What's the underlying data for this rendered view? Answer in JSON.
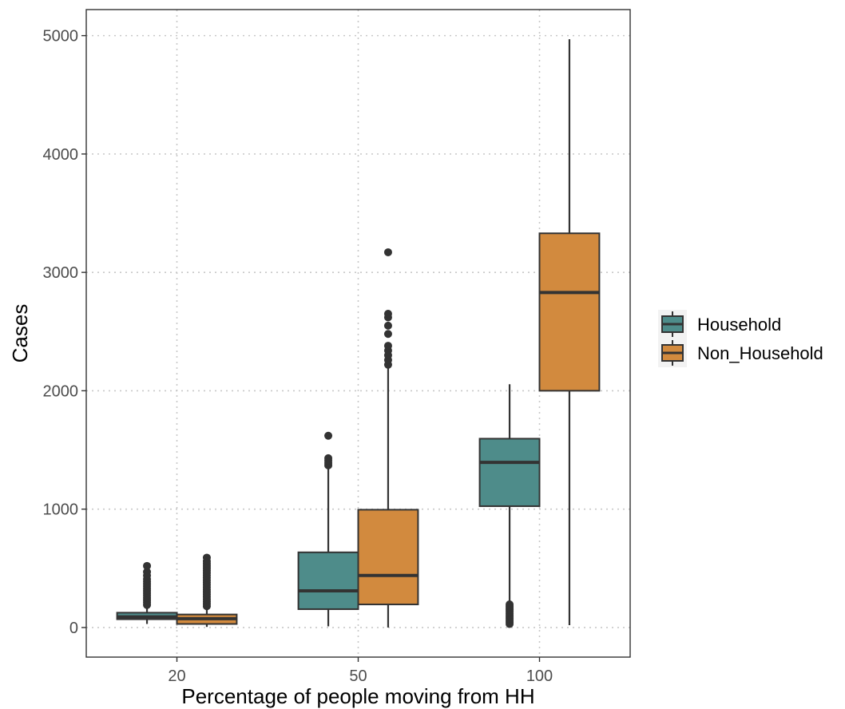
{
  "chart_data": {
    "type": "box",
    "title": "",
    "xlabel": "Percentage of people moving from HH",
    "ylabel": "Cases",
    "categories": [
      "20",
      "50",
      "100"
    ],
    "ylim": [
      -250,
      5220
    ],
    "yticks": [
      0,
      1000,
      2000,
      3000,
      4000,
      5000
    ],
    "grid": "dotted-major",
    "legend_position": "right",
    "series": [
      {
        "name": "Household",
        "color": "#4e8c8a",
        "boxes": [
          {
            "category": "20",
            "q1": 70,
            "median": 90,
            "q3": 125,
            "whisker_low": 30,
            "whisker_high": 170,
            "outliers": [
              190,
              210,
              230,
              250,
              270,
              290,
              310,
              330,
              350,
              370,
              390,
              410,
              440,
              470,
              520
            ]
          },
          {
            "category": "50",
            "q1": 155,
            "median": 310,
            "q3": 635,
            "whisker_low": 10,
            "whisker_high": 1345,
            "outliers": [
              1370,
              1390,
              1410,
              1430,
              1620
            ]
          },
          {
            "category": "100",
            "q1": 1025,
            "median": 1395,
            "q3": 1595,
            "whisker_low": 210,
            "whisker_high": 2055,
            "outliers": [
              30,
              45,
              60,
              75,
              90,
              105,
              120,
              135,
              150,
              165,
              180,
              195
            ]
          }
        ]
      },
      {
        "name": "Non_Household",
        "color": "#d28a3e",
        "boxes": [
          {
            "category": "20",
            "q1": 30,
            "median": 75,
            "q3": 110,
            "whisker_low": 5,
            "whisker_high": 160,
            "outliers": [
              180,
              200,
              220,
              240,
              260,
              280,
              300,
              320,
              340,
              360,
              380,
              400,
              420,
              440,
              460,
              480,
              500,
              520,
              540,
              560,
              590
            ]
          },
          {
            "category": "50",
            "q1": 195,
            "median": 440,
            "q3": 995,
            "whisker_low": 0,
            "whisker_high": 2190,
            "outliers": [
              2220,
              2260,
              2300,
              2340,
              2380,
              2480,
              2550,
              2620,
              2650,
              3170
            ]
          },
          {
            "category": "100",
            "q1": 2000,
            "median": 2830,
            "q3": 3330,
            "whisker_low": 20,
            "whisker_high": 4970,
            "outliers": []
          }
        ]
      }
    ]
  }
}
